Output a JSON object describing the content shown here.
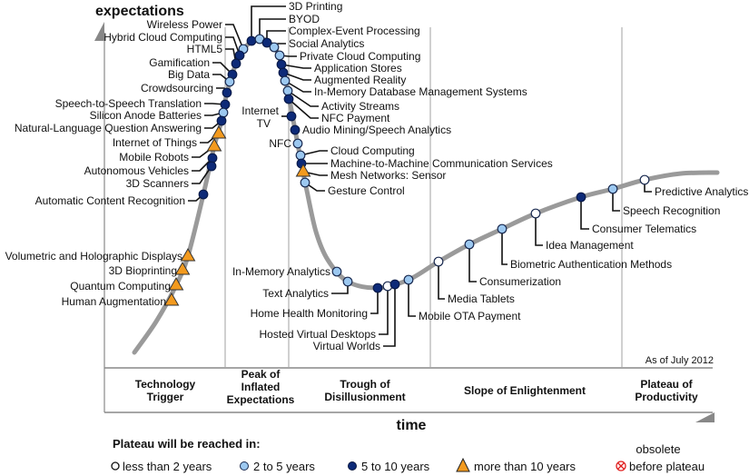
{
  "axes": {
    "y_label": "expectations",
    "x_label": "time"
  },
  "as_of": "As of July 2012",
  "phases": [
    {
      "label": "Technology Trigger"
    },
    {
      "label": "Peak of Inflated Expectations"
    },
    {
      "label": "Trough of Disillusionment"
    },
    {
      "label": "Slope of Enlightenment"
    },
    {
      "label": "Plateau of Productivity"
    }
  ],
  "legend": {
    "title": "Plateau will be reached in:",
    "items": [
      {
        "key": "lt2",
        "label": "less than 2 years",
        "color": "#ffffff"
      },
      {
        "key": "2to5",
        "label": "2 to 5 years",
        "color": "#9cc8f0"
      },
      {
        "key": "5to10",
        "label": "5 to 10 years",
        "color": "#0d2a78"
      },
      {
        "key": "gt10",
        "label": "more than 10 years",
        "color": "#f39a1e"
      },
      {
        "key": "obsolete",
        "label_line1": "obsolete",
        "label_line2": "before plateau",
        "color": "#e02020"
      }
    ]
  },
  "curve_color": "#9a9a9a",
  "technologies": [
    {
      "name": "Wireless Power",
      "plateau": "2to5"
    },
    {
      "name": "Hybrid Cloud Computing",
      "plateau": "5to10"
    },
    {
      "name": "HTML5",
      "plateau": "5to10"
    },
    {
      "name": "Gamification",
      "plateau": "5to10"
    },
    {
      "name": "Big Data",
      "plateau": "2to5"
    },
    {
      "name": "Crowdsourcing",
      "plateau": "5to10"
    },
    {
      "name": "Speech-to-Speech Translation",
      "plateau": "5to10"
    },
    {
      "name": "Silicon Anode Batteries",
      "plateau": "2to5"
    },
    {
      "name": "Natural-Language Question Answering",
      "plateau": "5to10"
    },
    {
      "name": "Internet of Things",
      "plateau": "gt10"
    },
    {
      "name": "Mobile Robots",
      "plateau": "gt10"
    },
    {
      "name": "Autonomous Vehicles",
      "plateau": "5to10"
    },
    {
      "name": "3D Scanners",
      "plateau": "5to10"
    },
    {
      "name": "Automatic Content Recognition",
      "plateau": "5to10"
    },
    {
      "name": "Volumetric and Holographic Displays",
      "plateau": "gt10"
    },
    {
      "name": "3D Bioprinting",
      "plateau": "gt10"
    },
    {
      "name": "Quantum Computing",
      "plateau": "gt10"
    },
    {
      "name": "Human Augmentation",
      "plateau": "gt10"
    },
    {
      "name": "3D Printing",
      "plateau": "5to10"
    },
    {
      "name": "BYOD",
      "plateau": "2to5"
    },
    {
      "name": "Complex-Event Processing",
      "plateau": "5to10"
    },
    {
      "name": "Social Analytics",
      "plateau": "2to5"
    },
    {
      "name": "Private Cloud Computing",
      "plateau": "2to5"
    },
    {
      "name": "Application Stores",
      "plateau": "5to10"
    },
    {
      "name": "Augmented Reality",
      "plateau": "5to10"
    },
    {
      "name": "In-Memory Database Management Systems",
      "plateau": "2to5"
    },
    {
      "name": "Activity Streams",
      "plateau": "2to5"
    },
    {
      "name": "NFC Payment",
      "plateau": "5to10"
    },
    {
      "name": "Internet TV",
      "plateau": "5to10"
    },
    {
      "name": "Audio Mining/Speech Analytics",
      "plateau": "5to10"
    },
    {
      "name": "NFC",
      "plateau": "2to5"
    },
    {
      "name": "Cloud Computing",
      "plateau": "2to5"
    },
    {
      "name": "Machine-to-Machine Communication Services",
      "plateau": "5to10"
    },
    {
      "name": "Mesh Networks: Sensor",
      "plateau": "gt10"
    },
    {
      "name": "Gesture Control",
      "plateau": "2to5"
    },
    {
      "name": "In-Memory Analytics",
      "plateau": "2to5"
    },
    {
      "name": "Text Analytics",
      "plateau": "2to5"
    },
    {
      "name": "Home Health Monitoring",
      "plateau": "5to10"
    },
    {
      "name": "Hosted Virtual Desktops",
      "plateau": "lt2"
    },
    {
      "name": "Virtual Worlds",
      "plateau": "5to10"
    },
    {
      "name": "Mobile OTA Payment",
      "plateau": "2to5"
    },
    {
      "name": "Media Tablets",
      "plateau": "lt2"
    },
    {
      "name": "Consumerization",
      "plateau": "2to5"
    },
    {
      "name": "Biometric Authentication Methods",
      "plateau": "2to5"
    },
    {
      "name": "Idea Management",
      "plateau": "lt2"
    },
    {
      "name": "Consumer Telematics",
      "plateau": "5to10"
    },
    {
      "name": "Speech Recognition",
      "plateau": "2to5"
    },
    {
      "name": "Predictive Analytics",
      "plateau": "lt2"
    }
  ]
}
